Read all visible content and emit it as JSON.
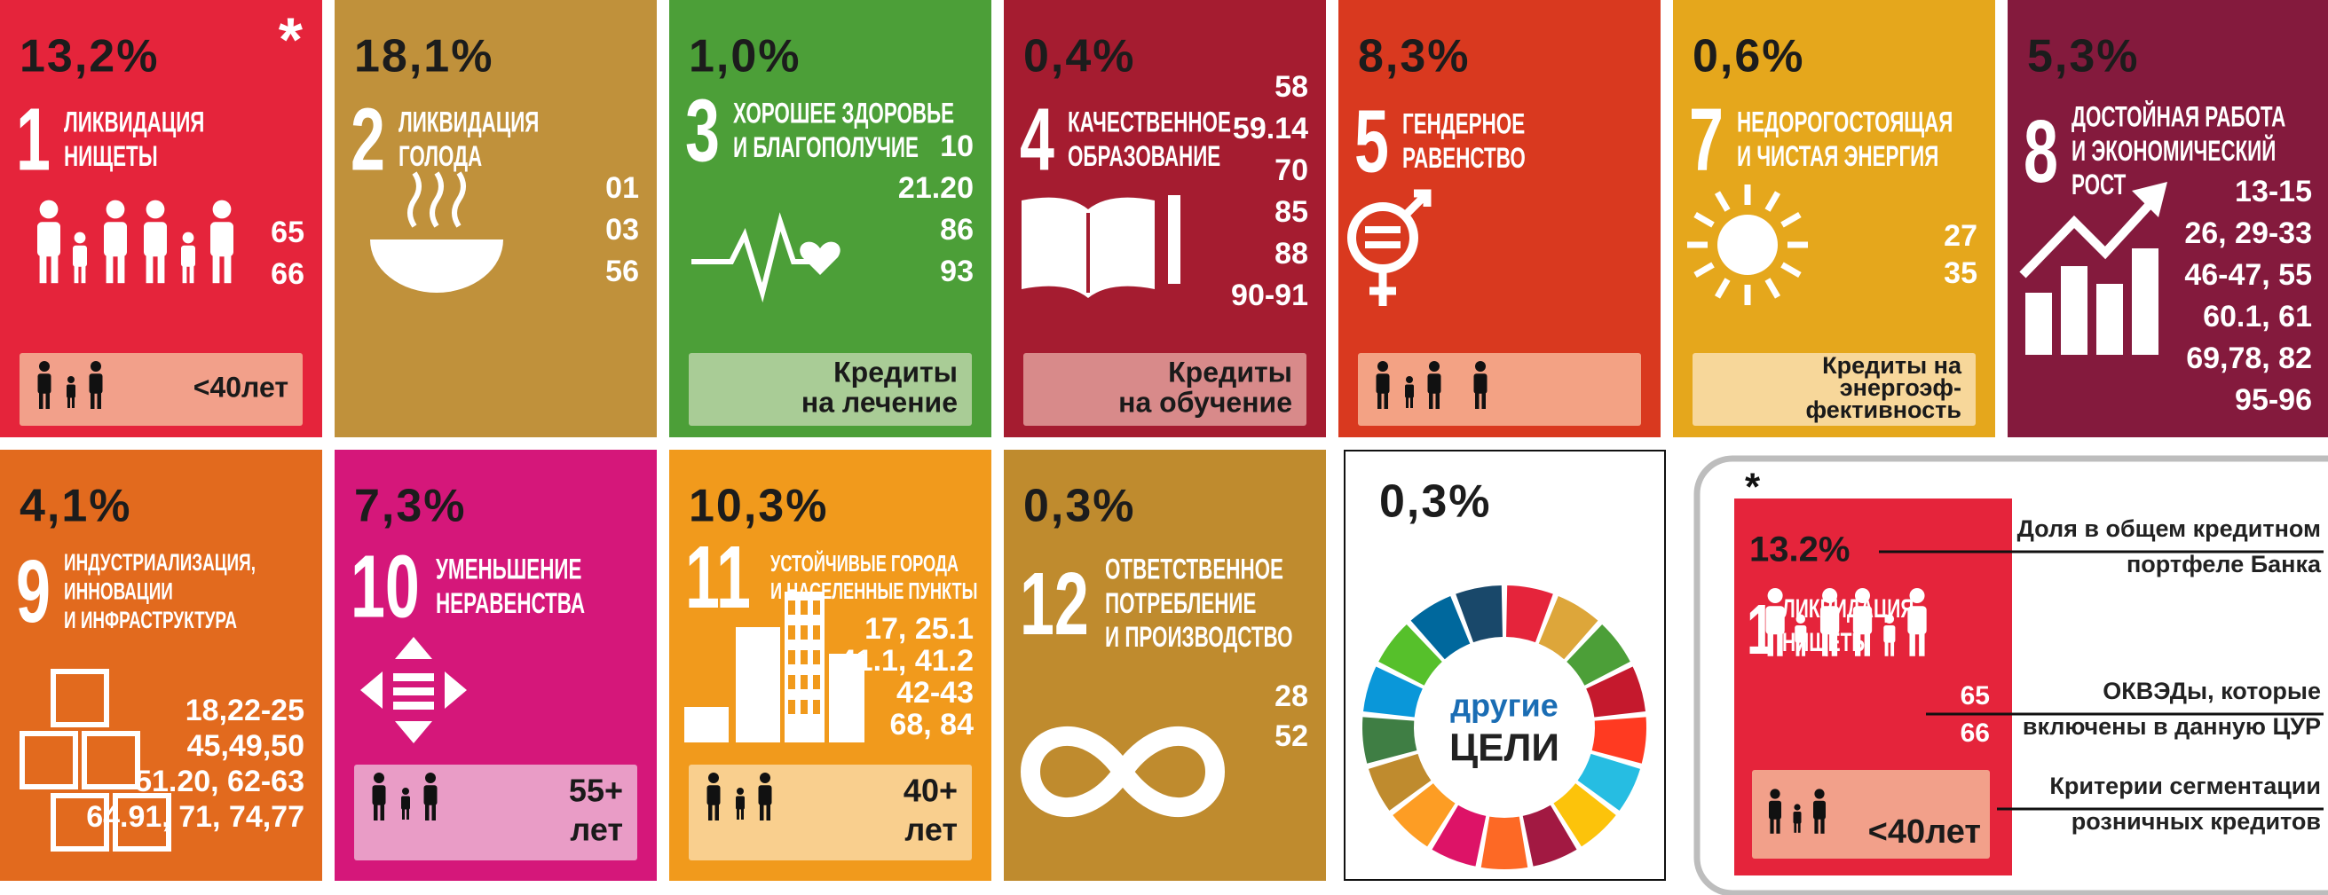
{
  "tiles": [
    {
      "percent": "13,2%",
      "star": "*",
      "number": "1",
      "title": [
        "ЛИКВИДАЦИЯ",
        "НИЩЕТЫ"
      ],
      "codes": [
        "65",
        "66"
      ],
      "box": [
        "<40лет"
      ],
      "color": "#e5243b",
      "box_color": "#f2a08a"
    },
    {
      "percent": "18,1%",
      "number": "2",
      "title": [
        "ЛИКВИДАЦИЯ",
        "ГОЛОДА"
      ],
      "codes": [
        "01",
        "03",
        "56"
      ],
      "color": "#c0913b"
    },
    {
      "percent": "1,0%",
      "number": "3",
      "title": [
        "ХОРОШЕЕ ЗДОРОВЬЕ",
        "И БЛАГОПОЛУЧИЕ"
      ],
      "codes": [
        "10",
        "21.20",
        "86",
        "93"
      ],
      "box": [
        "Кредиты",
        "на лечение"
      ],
      "color": "#4c9f38",
      "box_color": "#a9cc96"
    },
    {
      "percent": "0,4%",
      "number": "4",
      "title": [
        "КАЧЕСТВЕННОЕ",
        "ОБРАЗОВАНИЕ"
      ],
      "codes": [
        "58",
        "59.14",
        "70",
        "85",
        "88",
        "90-91"
      ],
      "box": [
        "Кредиты",
        "на обучение"
      ],
      "color": "#a51c30",
      "box_color": "#d88a8a"
    },
    {
      "percent": "8,3%",
      "number": "5",
      "title": [
        "ГЕНДЕРНОЕ",
        "РАВЕНСТВО"
      ],
      "codes": [],
      "box": [],
      "color": "#d9391f",
      "box_color": "#f3a284"
    },
    {
      "percent": "0,6%",
      "number": "7",
      "title": [
        "НЕДОРОГОСТОЯЩАЯ",
        "И ЧИСТАЯ ЭНЕРГИЯ"
      ],
      "codes": [
        "27",
        "35"
      ],
      "box": [
        "Кредиты на",
        "энергоэф-",
        "фективность"
      ],
      "color": "#e5a71c",
      "box_color": "#f7d79a"
    },
    {
      "percent": "5,3%",
      "number": "8",
      "title": [
        "ДОСТОЙНАЯ РАБОТА",
        "И ЭКОНОМИЧЕСКИЙ",
        "РОСТ"
      ],
      "codes": [
        "13-15",
        "26, 29-33",
        "46-47, 55",
        "60.1, 61",
        "69,78, 82",
        "95-96"
      ],
      "color": "#841a3d"
    },
    {
      "percent": "4,1%",
      "number": "9",
      "title": [
        "ИНДУСТРИАЛИЗАЦИЯ,",
        "ИННОВАЦИИ",
        "И ИНФРАСТРУКТУРА"
      ],
      "codes": [
        "18,22-25",
        "45,49,50",
        "51.20, 62-63",
        "64.91, 71, 74,77"
      ],
      "color": "#e26a1e"
    },
    {
      "percent": "7,3%",
      "number": "10",
      "title": [
        "УМЕНЬШЕНИЕ",
        "НЕРАВЕНСТВА"
      ],
      "codes": [],
      "box": [
        "55+",
        "лет"
      ],
      "color": "#d5177a",
      "box_color": "#e99cc6"
    },
    {
      "percent": "10,3%",
      "number": "11",
      "title": [
        "УСТОЙЧИВЫЕ ГОРОДА",
        "И НАСЕЛЕННЫЕ ПУНКТЫ"
      ],
      "codes": [
        "17, 25.1",
        "41.1, 41.2",
        "42-43",
        "68, 84"
      ],
      "box": [
        "40+",
        "лет"
      ],
      "color": "#f19a1c",
      "box_color": "#f9cf8e"
    },
    {
      "percent": "0,3%",
      "number": "12",
      "title": [
        "ОТВЕТСТВЕННОЕ",
        "ПОТРЕБЛЕНИЕ",
        "И ПРОИЗВОДСТВО"
      ],
      "codes": [
        "28",
        "52"
      ],
      "color": "#bf8b2e"
    }
  ],
  "other": {
    "percent": "0,3%",
    "wheel": [
      "другие",
      "ЦЕЛИ"
    ]
  },
  "legend": {
    "star": "*",
    "percent": "13.2%",
    "number": "1",
    "title": [
      "ЛИКВИДАЦИЯ",
      "НИЩЕТЫ"
    ],
    "codes": [
      "65",
      "66"
    ],
    "box": "<40лет",
    "color": "#e5243b",
    "box_color": "#f2a08a",
    "notes": [
      [
        "Доля в общем кредитном",
        "портфеле Банка"
      ],
      [
        "ОКВЭДы, которые",
        "включены в данную ЦУР"
      ],
      [
        "Критерии сегментации",
        "розничных кредитов"
      ]
    ]
  }
}
